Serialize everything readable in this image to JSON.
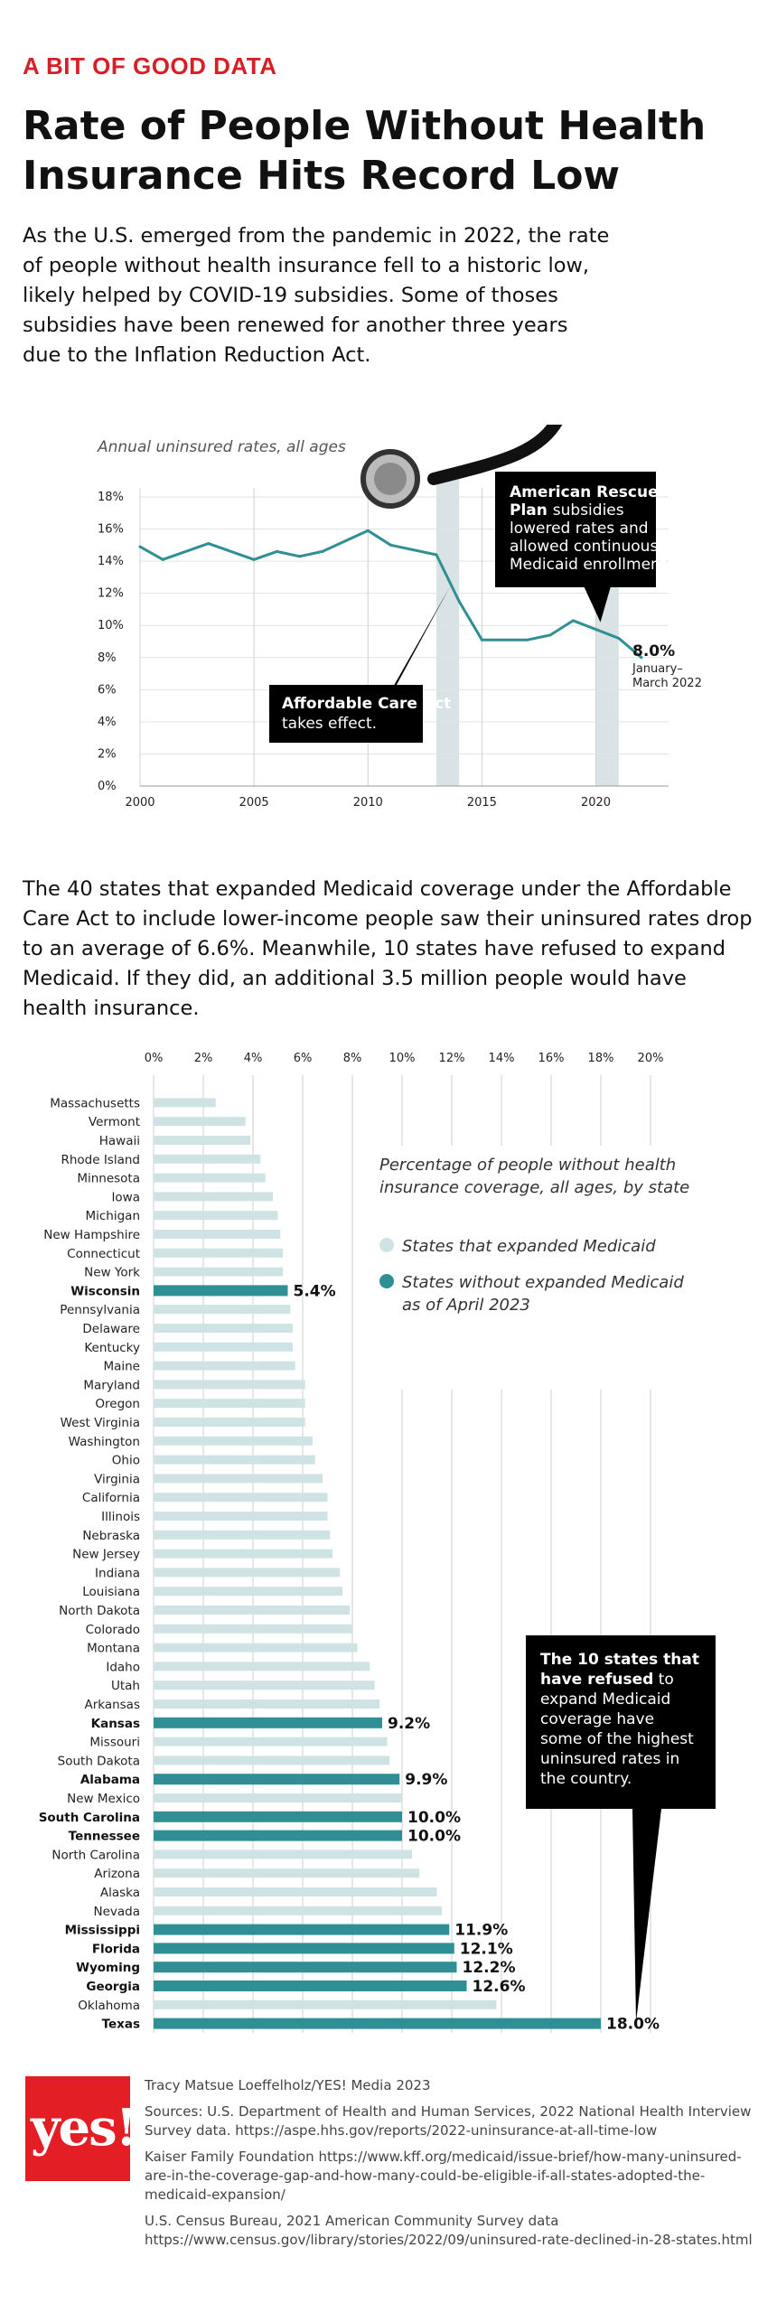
{
  "header": {
    "kicker": "A BIT OF GOOD DATA",
    "title": "Rate of People Without Health Insurance Hits Record Low",
    "intro": "As the U.S. emerged from the pandemic in 2022, the rate of people without health insurance fell to a historic low, likely helped by COVID-19 subsidies. Some of thoses subsidies have been renewed for another three years due to the Inflation Reduction Act."
  },
  "chart_data": [
    {
      "type": "line",
      "title": "",
      "subtitle": "Annual uninsured rates, all ages",
      "xlabel": "",
      "ylabel": "",
      "xlim": [
        2000,
        2022
      ],
      "ylim": [
        0,
        18
      ],
      "x_ticks": [
        "2000",
        "2005",
        "2010",
        "2015",
        "2020"
      ],
      "y_ticks": [
        "0%",
        "2%",
        "4%",
        "6%",
        "8%",
        "10%",
        "12%",
        "14%",
        "16%",
        "18%"
      ],
      "grid": true,
      "line_color": "#2f8f94",
      "band_color": "#d9e2e4",
      "bands": [
        [
          2013,
          2014
        ],
        [
          2020,
          2021
        ]
      ],
      "points": [
        {
          "x": 2000,
          "y": 14.9
        },
        {
          "x": 2001,
          "y": 14.1
        },
        {
          "x": 2003,
          "y": 15.1
        },
        {
          "x": 2005,
          "y": 14.1
        },
        {
          "x": 2006,
          "y": 14.6
        },
        {
          "x": 2007,
          "y": 14.3
        },
        {
          "x": 2008,
          "y": 14.6
        },
        {
          "x": 2010,
          "y": 15.9
        },
        {
          "x": 2011,
          "y": 15.0
        },
        {
          "x": 2013,
          "y": 14.4
        },
        {
          "x": 2014,
          "y": 11.5
        },
        {
          "x": 2015,
          "y": 9.1
        },
        {
          "x": 2017,
          "y": 9.1
        },
        {
          "x": 2018,
          "y": 9.4
        },
        {
          "x": 2019,
          "y": 10.3
        },
        {
          "x": 2021,
          "y": 9.2
        },
        {
          "x": 2022,
          "y": 8.0
        }
      ],
      "annotations": {
        "aca_bold": "Affordable Care Act",
        "aca_rest": "takes effect.",
        "arp_bold": "American Rescue Plan",
        "arp_rest": "subsidies lowered rates and allowed continuous Medicaid enrollment.",
        "end_value": "8.0%",
        "end_label": "January–March 2022"
      }
    },
    {
      "type": "bar",
      "orientation": "horizontal",
      "title": "",
      "subtitle": "Percentage of people without health insurance coverage, all ages, by state",
      "xlim": [
        0,
        20
      ],
      "x_ticks": [
        "0%",
        "2%",
        "4%",
        "6%",
        "8%",
        "10%",
        "12%",
        "14%",
        "16%",
        "18%",
        "20%"
      ],
      "grid": true,
      "legend_position": "right",
      "legend": [
        {
          "label": "States that expanded Medicaid",
          "color": "#cfe3e4"
        },
        {
          "label": "States without expanded Medicaid as of April 2023",
          "color": "#2f8f94"
        }
      ],
      "callout": {
        "bold": "The 10 states that have refused",
        "rest": "to expand Medicaid coverage have some of the highest uninsured rates in the country."
      },
      "bars": [
        {
          "state": "Massachusetts",
          "value": 2.5,
          "expanded": true
        },
        {
          "state": "Vermont",
          "value": 3.7,
          "expanded": true
        },
        {
          "state": "Hawaii",
          "value": 3.9,
          "expanded": true
        },
        {
          "state": "Rhode Island",
          "value": 4.3,
          "expanded": true
        },
        {
          "state": "Minnesota",
          "value": 4.5,
          "expanded": true
        },
        {
          "state": "Iowa",
          "value": 4.8,
          "expanded": true
        },
        {
          "state": "Michigan",
          "value": 5.0,
          "expanded": true
        },
        {
          "state": "New Hampshire",
          "value": 5.1,
          "expanded": true
        },
        {
          "state": "Connecticut",
          "value": 5.2,
          "expanded": true
        },
        {
          "state": "New York",
          "value": 5.2,
          "expanded": true
        },
        {
          "state": "Wisconsin",
          "value": 5.4,
          "expanded": false,
          "label": "5.4%"
        },
        {
          "state": "Pennsylvania",
          "value": 5.5,
          "expanded": true
        },
        {
          "state": "Delaware",
          "value": 5.6,
          "expanded": true
        },
        {
          "state": "Kentucky",
          "value": 5.6,
          "expanded": true
        },
        {
          "state": "Maine",
          "value": 5.7,
          "expanded": true
        },
        {
          "state": "Maryland",
          "value": 6.1,
          "expanded": true
        },
        {
          "state": "Oregon",
          "value": 6.1,
          "expanded": true
        },
        {
          "state": "West Virginia",
          "value": 6.1,
          "expanded": true
        },
        {
          "state": "Washington",
          "value": 6.4,
          "expanded": true
        },
        {
          "state": "Ohio",
          "value": 6.5,
          "expanded": true
        },
        {
          "state": "Virginia",
          "value": 6.8,
          "expanded": true
        },
        {
          "state": "California",
          "value": 7.0,
          "expanded": true
        },
        {
          "state": "Illinois",
          "value": 7.0,
          "expanded": true
        },
        {
          "state": "Nebraska",
          "value": 7.1,
          "expanded": true
        },
        {
          "state": "New Jersey",
          "value": 7.2,
          "expanded": true
        },
        {
          "state": "Indiana",
          "value": 7.5,
          "expanded": true
        },
        {
          "state": "Louisiana",
          "value": 7.6,
          "expanded": true
        },
        {
          "state": "North Dakota",
          "value": 7.9,
          "expanded": true
        },
        {
          "state": "Colorado",
          "value": 8.0,
          "expanded": true
        },
        {
          "state": "Montana",
          "value": 8.2,
          "expanded": true
        },
        {
          "state": "Idaho",
          "value": 8.7,
          "expanded": true
        },
        {
          "state": "Utah",
          "value": 8.9,
          "expanded": true
        },
        {
          "state": "Arkansas",
          "value": 9.1,
          "expanded": true
        },
        {
          "state": "Kansas",
          "value": 9.2,
          "expanded": false,
          "label": "9.2%"
        },
        {
          "state": "Missouri",
          "value": 9.4,
          "expanded": true
        },
        {
          "state": "South Dakota",
          "value": 9.5,
          "expanded": true
        },
        {
          "state": "Alabama",
          "value": 9.9,
          "expanded": false,
          "label": "9.9%"
        },
        {
          "state": "New Mexico",
          "value": 10.0,
          "expanded": true
        },
        {
          "state": "South Carolina",
          "value": 10.0,
          "expanded": false,
          "label": "10.0%"
        },
        {
          "state": "Tennessee",
          "value": 10.0,
          "expanded": false,
          "label": "10.0%"
        },
        {
          "state": "North Carolina",
          "value": 10.4,
          "expanded": true
        },
        {
          "state": "Arizona",
          "value": 10.7,
          "expanded": true
        },
        {
          "state": "Alaska",
          "value": 11.4,
          "expanded": true
        },
        {
          "state": "Nevada",
          "value": 11.6,
          "expanded": true
        },
        {
          "state": "Mississippi",
          "value": 11.9,
          "expanded": false,
          "label": "11.9%"
        },
        {
          "state": "Florida",
          "value": 12.1,
          "expanded": false,
          "label": "12.1%"
        },
        {
          "state": "Wyoming",
          "value": 12.2,
          "expanded": false,
          "label": "12.2%"
        },
        {
          "state": "Georgia",
          "value": 12.6,
          "expanded": false,
          "label": "12.6%"
        },
        {
          "state": "Oklahoma",
          "value": 13.8,
          "expanded": true
        },
        {
          "state": "Texas",
          "value": 18.0,
          "expanded": false,
          "label": "18.0%"
        }
      ]
    }
  ],
  "middle_text": "The 40 states that expanded Medicaid coverage under the Affordable Care Act to include lower-income people saw their uninsured rates drop to an average of 6.6%. Meanwhile, 10 states have refused to expand Medicaid. If they did, an additional 3.5 million people would have health insurance.",
  "footer": {
    "logo_text": "yes!",
    "credit": "Tracy Matsue Loeffelholz/YES! Media 2023",
    "sources": [
      "Sources: U.S. Department of Health and Human Services, 2022 National Health Interview Survey data. https://aspe.hhs.gov/reports/2022-uninsurance-at-all-time-low",
      "Kaiser Family Foundation  https://www.kff.org/medicaid/issue-brief/how-many-uninsured-are-in-the-coverage-gap-and-how-many-could-be-eligible-if-all-states-adopted-the-medicaid-expansion/",
      "U.S. Census Bureau, 2021 American Community Survey data  https://www.census.gov/library/stories/2022/09/uninsured-rate-declined-in-28-states.html"
    ]
  }
}
